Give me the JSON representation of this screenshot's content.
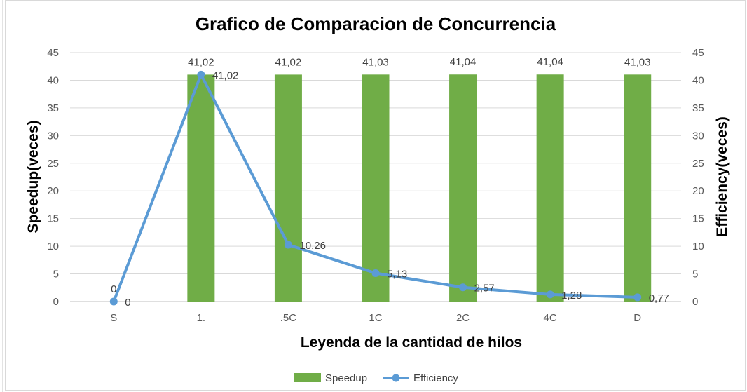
{
  "chart_data": {
    "type": "bar",
    "title": "Grafico de Comparacion de Concurrencia",
    "xlabel": "Leyenda de la cantidad de hilos",
    "ylabel": "Speedup(veces)",
    "y2label": "Efficiency(veces)",
    "categories": [
      "S",
      "1.",
      ".5C",
      "1C",
      "2C",
      "4C",
      "D"
    ],
    "ylim": [
      0,
      45
    ],
    "y2lim": [
      0,
      45
    ],
    "yticks": [
      "0",
      "5",
      "10",
      "15",
      "20",
      "25",
      "30",
      "35",
      "40",
      "45"
    ],
    "grid": true,
    "legend_position": "bottom",
    "series": [
      {
        "name": "Speedup",
        "type": "bar",
        "color": "#70ad47",
        "values": [
          0,
          41.02,
          41.02,
          41.03,
          41.04,
          41.04,
          41.03
        ],
        "labels": [
          "0",
          "41,02",
          "41,02",
          "41,03",
          "41,04",
          "41,04",
          "41,03"
        ]
      },
      {
        "name": "Efficiency",
        "type": "line",
        "color": "#5b9bd5",
        "values": [
          0,
          41.02,
          10.26,
          5.13,
          2.57,
          1.28,
          0.77
        ],
        "labels": [
          "0",
          "41,02",
          "10,26",
          "5,13",
          "2,57",
          "1,28",
          "0,77"
        ]
      }
    ]
  }
}
